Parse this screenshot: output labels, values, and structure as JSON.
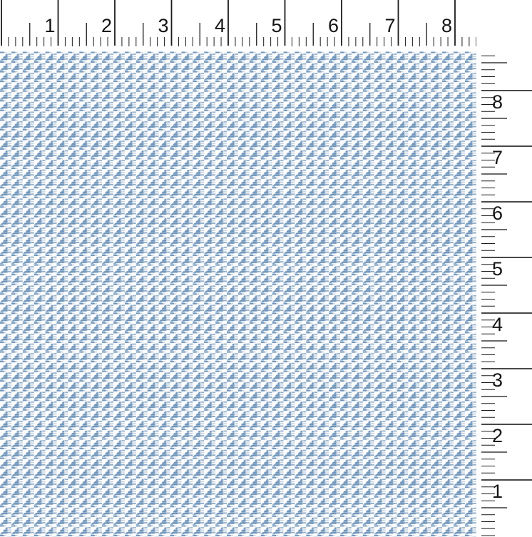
{
  "rulers": {
    "tick_color": "#1c1c1c",
    "top": {
      "orientation": "horizontal",
      "labels": [
        "1",
        "2",
        "3",
        "4",
        "5",
        "6",
        "7",
        "8"
      ]
    },
    "right": {
      "orientation": "vertical",
      "labels": [
        "8",
        "7",
        "6",
        "5",
        "4",
        "3",
        "2",
        "1"
      ]
    }
  },
  "fabric": {
    "pattern": "houndstooth",
    "colors": {
      "base": "#fdfdfe",
      "blue": "#7095ba",
      "blue_mid": "#8fadc9",
      "blue_haze": "#c2d1e0",
      "weave_highlight": "#ffffff"
    }
  }
}
